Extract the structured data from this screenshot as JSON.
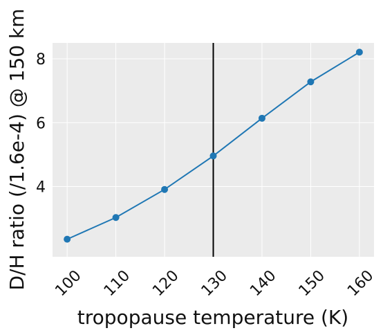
{
  "chart_data": {
    "type": "line",
    "xlabel": "tropopause temperature (K)",
    "ylabel": "D/H ratio (/1.6e-4) @ 150 km",
    "x": [
      100,
      110,
      120,
      130,
      140,
      150,
      160
    ],
    "series": [
      {
        "values": [
          2.35,
          3.03,
          3.91,
          4.96,
          6.14,
          7.28,
          8.21
        ],
        "color": "#1f77b4"
      }
    ],
    "xticks": [
      100,
      110,
      120,
      130,
      140,
      150,
      160
    ],
    "yticks": [
      4,
      6,
      8
    ],
    "xlim": [
      97,
      163
    ],
    "ylim": [
      1.8,
      8.5
    ],
    "vline": {
      "x": 130,
      "color": "#000000"
    },
    "grid": true,
    "background": "#ebebeb",
    "grid_color": "#ffffff"
  }
}
